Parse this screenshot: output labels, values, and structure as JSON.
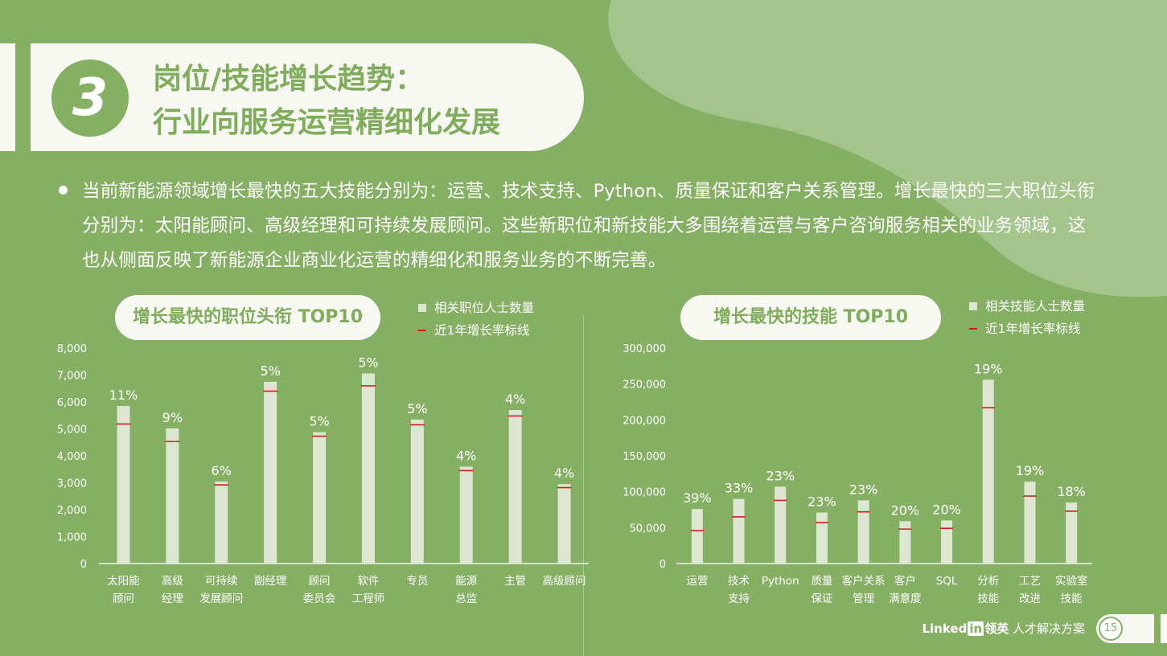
{
  "header": {
    "number": "3",
    "title_line1": "岗位/技能增长趋势：",
    "title_line2": "行业向服务运营精细化发展"
  },
  "summary": "当前新能源领域增长最快的五大技能分别为：运营、技术支持、Python、质量保证和客户关系管理。增长最快的三大职位头衔分别为：太阳能顾问、高级经理和可持续发展顾问。这些新职位和新技能大多围绕着运营与客户咨询服务相关的业务领域，这也从侧面反映了新能源企业商业化运营的精细化和服务业务的不断完善。",
  "colors": {
    "background": "#85b064",
    "bar": "#dce6d0",
    "marker": "#d41e1e",
    "pill": "#f6f8f1",
    "title_text": "#7fad5b"
  },
  "chart_data": [
    {
      "type": "bar",
      "title": "增长最快的职位头衔 TOP10",
      "legend": {
        "bar": "相关职位人士数量",
        "marker": "近1年增长率标线"
      },
      "categories": [
        [
          "太阳能",
          "顾问"
        ],
        [
          "高级",
          "经理"
        ],
        [
          "可持续",
          "发展顾问"
        ],
        [
          "副经理"
        ],
        [
          "顾问",
          "委员会"
        ],
        [
          "软件",
          "工程师"
        ],
        [
          "专员"
        ],
        [
          "能源",
          "总监"
        ],
        [
          "主管"
        ],
        [
          "高级顾问"
        ]
      ],
      "values": [
        5850,
        5020,
        3050,
        6750,
        4880,
        7060,
        5350,
        3600,
        5700,
        2950
      ],
      "marker_values": [
        5180,
        4530,
        2920,
        6400,
        4730,
        6600,
        5150,
        3450,
        5480,
        2820
      ],
      "growth_labels": [
        "11%",
        "9%",
        "6%",
        "5%",
        "5%",
        "5%",
        "5%",
        "4%",
        "4%",
        "4%"
      ],
      "yticks": [
        "0",
        "1,000",
        "2,000",
        "3,000",
        "4,000",
        "5,000",
        "6,000",
        "7,000",
        "8,000"
      ],
      "ylim": [
        0,
        8000
      ],
      "grid": false
    },
    {
      "type": "bar",
      "title": "增长最快的技能 TOP10",
      "legend": {
        "bar": "相关技能人士数量",
        "marker": "近1年增长率标线"
      },
      "categories": [
        [
          "运营"
        ],
        [
          "技术",
          "支持"
        ],
        [
          "Python"
        ],
        [
          "质量",
          "保证"
        ],
        [
          "客户关系",
          "管理"
        ],
        [
          "客户",
          "满意度"
        ],
        [
          "SQL"
        ],
        [
          "分析",
          "技能"
        ],
        [
          "工艺",
          "改进"
        ],
        [
          "实验室",
          "技能"
        ]
      ],
      "values": [
        76000,
        90000,
        107000,
        71000,
        88000,
        59000,
        60000,
        256000,
        114000,
        85000
      ],
      "marker_values": [
        46000,
        65000,
        88000,
        57000,
        72000,
        48000,
        49000,
        217000,
        94000,
        73000
      ],
      "growth_labels": [
        "39%",
        "33%",
        "23%",
        "23%",
        "23%",
        "20%",
        "20%",
        "19%",
        "19%",
        "18%"
      ],
      "yticks": [
        "0",
        "50,000",
        "100,000",
        "150,000",
        "200,000",
        "250,000",
        "300,000"
      ],
      "ylim": [
        0,
        300000
      ],
      "grid": false
    }
  ],
  "footer": {
    "brand_linked": "Linked",
    "brand_in": "in",
    "brand_cn": "领英",
    "brand_tagline": "人才解决方案",
    "page_number": "15"
  }
}
